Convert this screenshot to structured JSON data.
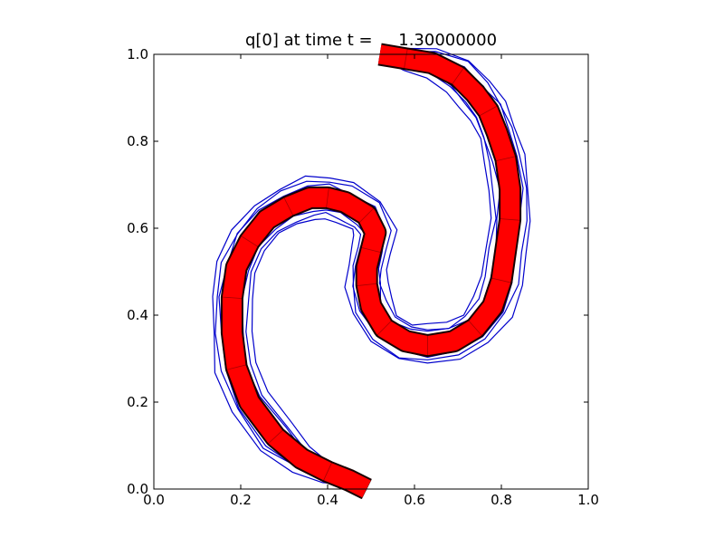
{
  "chart_data": {
    "type": "line",
    "title": "q[0] at time t =     1.30000000",
    "xlabel": "",
    "ylabel": "",
    "xlim": [
      0.0,
      1.0
    ],
    "ylim": [
      0.0,
      1.0
    ],
    "grid": false,
    "x_ticks": [
      "0.0",
      "0.2",
      "0.4",
      "0.6",
      "0.8",
      "1.0"
    ],
    "y_ticks": [
      "0.0",
      "0.2",
      "0.4",
      "0.6",
      "0.8",
      "1.0"
    ],
    "colors": {
      "filled_band": "#ff0000",
      "contours": "#0000cc",
      "mesh": "#000000"
    },
    "band_centerline": {
      "x": [
        0.49,
        0.45,
        0.4,
        0.34,
        0.28,
        0.22,
        0.19,
        0.18,
        0.18,
        0.19,
        0.22,
        0.26,
        0.31,
        0.36,
        0.4,
        0.44,
        0.49,
        0.51,
        0.5,
        0.49,
        0.49,
        0.5,
        0.53,
        0.58,
        0.63,
        0.69,
        0.74,
        0.78,
        0.8,
        0.81,
        0.82,
        0.82,
        0.81,
        0.79,
        0.77,
        0.74,
        0.7,
        0.64,
        0.58,
        0.52
      ],
      "y": [
        0.0,
        0.02,
        0.04,
        0.07,
        0.12,
        0.2,
        0.28,
        0.36,
        0.44,
        0.51,
        0.57,
        0.62,
        0.65,
        0.67,
        0.67,
        0.66,
        0.63,
        0.59,
        0.55,
        0.51,
        0.47,
        0.42,
        0.37,
        0.34,
        0.33,
        0.34,
        0.37,
        0.42,
        0.48,
        0.55,
        0.62,
        0.69,
        0.76,
        0.82,
        0.87,
        0.91,
        0.95,
        0.98,
        0.99,
        1.0
      ]
    }
  }
}
